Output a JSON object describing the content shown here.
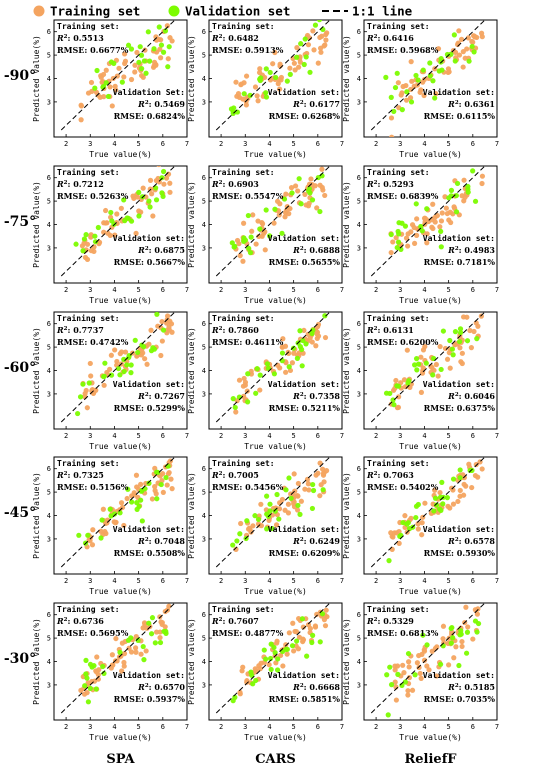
{
  "legend": {
    "training_label": "Training set",
    "validation_label": "Validation set",
    "line_label": "1:1 line"
  },
  "colors": {
    "training": "#f4a460",
    "validation": "#7cfc00",
    "line": "#000000"
  },
  "axis_labels": {
    "x": "True value(%)",
    "y": "Predicted value(%)"
  },
  "annotation_labels": {
    "training_header": "Training set:",
    "validation_header": "Validation set:",
    "validation_header_alt": "Validation Set:",
    "r2_prefix": "R",
    "rmse_prefix": "RMSE: "
  },
  "row_labels": [
    "-90°",
    "-75°",
    "-60°",
    "-45°",
    "-30°"
  ],
  "col_labels": [
    "SPA",
    "CARS",
    "ReliefF"
  ],
  "chart_data": {
    "type": "scatter",
    "x_ticks": [
      "2",
      "3",
      "4",
      "5",
      "6",
      "7"
    ],
    "y_ticks": [
      "3",
      "4",
      "5",
      "6"
    ],
    "xlim": [
      1.5,
      7
    ],
    "ylim": [
      1.5,
      6.5
    ],
    "reference_line": "1:1",
    "panels": [
      {
        "row": "-90°",
        "col": "SPA",
        "train": {
          "r2": "0.5513",
          "rmse": "0.6677%"
        },
        "val": {
          "r2": "0.5469",
          "rmse": "0.6824%"
        },
        "val_header_variant": "alt"
      },
      {
        "row": "-90°",
        "col": "CARS",
        "train": {
          "r2": "0.6482",
          "rmse": "0.5913%"
        },
        "val": {
          "r2": "0.6177",
          "rmse": "0.6268%"
        }
      },
      {
        "row": "-90°",
        "col": "ReliefF",
        "train": {
          "r2": "0.6416",
          "rmse": "0.5968%"
        },
        "val": {
          "r2": "0.6361",
          "rmse": "0.6115%"
        }
      },
      {
        "row": "-75°",
        "col": "SPA",
        "train": {
          "r2": "0.7212",
          "rmse": "0.5263%"
        },
        "val": {
          "r2": "0.6875",
          "rmse": "0.5667%"
        }
      },
      {
        "row": "-75°",
        "col": "CARS",
        "train": {
          "r2": "0.6903",
          "rmse": "0.5547%"
        },
        "val": {
          "r2": "0.6888",
          "rmse": "0.5655%"
        }
      },
      {
        "row": "-75°",
        "col": "ReliefF",
        "train": {
          "r2": "0.5293",
          "rmse": "0.6839%"
        },
        "val": {
          "r2": "0.4983",
          "rmse": "0.7181%"
        }
      },
      {
        "row": "-60°",
        "col": "SPA",
        "train": {
          "r2": "0.7737",
          "rmse": "0.4742%"
        },
        "val": {
          "r2": "0.7267",
          "rmse": "0.5299%"
        }
      },
      {
        "row": "-60°",
        "col": "CARS",
        "train": {
          "r2": "0.7860",
          "rmse": "0.4611%"
        },
        "val": {
          "r2": "0.7358",
          "rmse": "0.5211%"
        }
      },
      {
        "row": "-60°",
        "col": "ReliefF",
        "train": {
          "r2": "0.6131",
          "rmse": "0.6200%"
        },
        "val": {
          "r2": "0.6046",
          "rmse": "0.6375%"
        }
      },
      {
        "row": "-45°",
        "col": "SPA",
        "train": {
          "r2": "0.7325",
          "rmse": "0.5156%"
        },
        "val": {
          "r2": "0.7048",
          "rmse": "0.5508%"
        }
      },
      {
        "row": "-45°",
        "col": "CARS",
        "train": {
          "r2": "0.7005",
          "rmse": "0.5456%"
        },
        "val": {
          "r2": "0.6249",
          "rmse": "0.6209%"
        }
      },
      {
        "row": "-45°",
        "col": "ReliefF",
        "train": {
          "r2": "0.7063",
          "rmse": "0.5402%"
        },
        "val": {
          "r2": "0.6578",
          "rmse": "0.5930%"
        }
      },
      {
        "row": "-30°",
        "col": "SPA",
        "train": {
          "r2": "0.6736",
          "rmse": "0.5695%"
        },
        "val": {
          "r2": "0.6570",
          "rmse": "0.5937%"
        }
      },
      {
        "row": "-30°",
        "col": "CARS",
        "train": {
          "r2": "0.7607",
          "rmse": "0.4877%"
        },
        "val": {
          "r2": "0.6668",
          "rmse": "0.5851%"
        }
      },
      {
        "row": "-30°",
        "col": "ReliefF",
        "train": {
          "r2": "0.5329",
          "rmse": "0.6813%"
        },
        "val": {
          "r2": "0.5185",
          "rmse": "0.7035%"
        }
      }
    ]
  }
}
